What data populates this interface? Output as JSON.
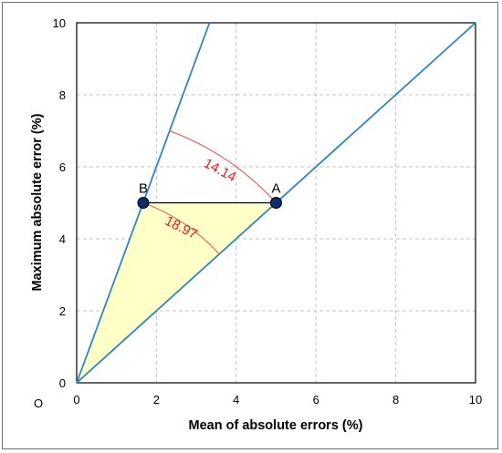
{
  "chart_data": {
    "type": "line",
    "xlabel": "Mean of absolute errors (%)",
    "ylabel": "Maximum absolute error (%)",
    "xlim": [
      0,
      10
    ],
    "ylim": [
      0,
      10
    ],
    "x_ticks": [
      "0",
      "2",
      "4",
      "6",
      "8",
      "10"
    ],
    "y_ticks": [
      "0",
      "2",
      "4",
      "6",
      "8",
      "10"
    ],
    "grid": true,
    "origin_label": "O",
    "lines": [
      {
        "from": [
          0,
          0
        ],
        "to": [
          3.33,
          10
        ],
        "color": "#2e86c1"
      },
      {
        "from": [
          0,
          0
        ],
        "to": [
          10,
          10
        ],
        "color": "#2e86c1"
      }
    ],
    "points": [
      {
        "label": "A",
        "x": 5.0,
        "y": 5.0
      },
      {
        "label": "B",
        "x": 1.67,
        "y": 5.0
      }
    ],
    "segment_AB": {
      "from": [
        1.67,
        5.0
      ],
      "to": [
        5.0,
        5.0
      ],
      "color": "#000000"
    },
    "shaded_region": {
      "vertices": [
        [
          0,
          0
        ],
        [
          1.67,
          5.0
        ],
        [
          5.0,
          5.0
        ]
      ],
      "color": "#ffffc8"
    },
    "angle_annotations": [
      {
        "text": "14.14",
        "color": "#e02020"
      },
      {
        "text": "18.97",
        "color": "#e02020"
      }
    ]
  }
}
